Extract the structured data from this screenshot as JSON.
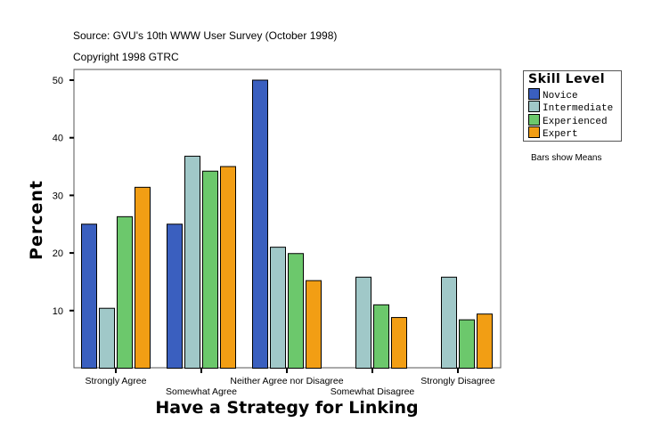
{
  "header": {
    "source": "Source: GVU's 10th WWW User Survey (October 1998)",
    "copyright": "Copyright 1998 GTRC"
  },
  "note": "Bars show Means",
  "chart_data": {
    "type": "bar",
    "xlabel": "Have a Strategy for Linking",
    "ylabel": "Percent",
    "ylim": [
      0,
      50
    ],
    "yticks": [
      10,
      20,
      30,
      40,
      50
    ],
    "grid": false,
    "legend_title": "Skill Level",
    "legend_position": "right",
    "categories": [
      "Strongly Agree",
      "Somewhat Agree",
      "Neither Agree nor Disagree",
      "Somewhat Disagree",
      "Strongly Disagree"
    ],
    "series": [
      {
        "name": "Novice",
        "color": "#3a5fbf",
        "values": [
          25.0,
          25.0,
          50.0,
          null,
          null
        ]
      },
      {
        "name": "Intermediate",
        "color": "#a0c8c8",
        "values": [
          10.4,
          36.8,
          21.0,
          15.8,
          15.8
        ]
      },
      {
        "name": "Experienced",
        "color": "#6cc86c",
        "values": [
          26.3,
          34.2,
          19.9,
          11.0,
          8.4
        ]
      },
      {
        "name": "Expert",
        "color": "#f29e14",
        "values": [
          31.4,
          35.0,
          15.2,
          8.8,
          9.4
        ]
      }
    ]
  }
}
